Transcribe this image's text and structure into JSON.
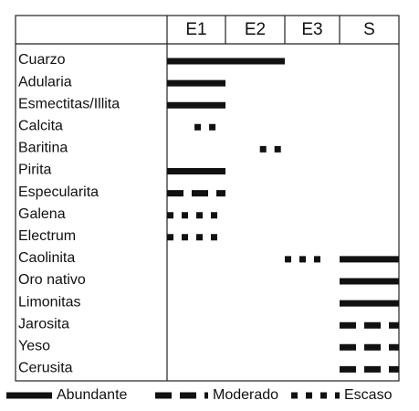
{
  "columns": [
    "E1",
    "E2",
    "E3",
    "S"
  ],
  "legend": [
    {
      "label": "Abundante"
    },
    {
      "label": "Moderado"
    },
    {
      "label": "Escaso"
    }
  ],
  "rows": [
    {
      "label": "Cuarzo",
      "bars": [
        {
          "start": 0,
          "end": 2,
          "level": 0
        }
      ]
    },
    {
      "label": "Adularia",
      "bars": [
        {
          "start": 0,
          "end": 1,
          "level": 0
        }
      ]
    },
    {
      "label": "Esmectitas/Illita",
      "bars": [
        {
          "start": 0,
          "end": 1,
          "level": 0
        }
      ]
    },
    {
      "label": "Calcita",
      "bars": [
        {
          "start": 0.47,
          "end": 0.9,
          "level": 2
        }
      ]
    },
    {
      "label": "Baritina",
      "bars": [
        {
          "start": 1.58,
          "end": 2,
          "level": 2
        }
      ]
    },
    {
      "label": "Pirita",
      "bars": [
        {
          "start": 0,
          "end": 1,
          "level": 0
        }
      ]
    },
    {
      "label": "Especularita",
      "bars": [
        {
          "start": 0,
          "end": 1,
          "level": 1
        }
      ]
    },
    {
      "label": "Galena",
      "bars": [
        {
          "start": 0,
          "end": 1,
          "level": 2
        }
      ]
    },
    {
      "label": "Electrum",
      "bars": [
        {
          "start": 0,
          "end": 1,
          "level": 2
        }
      ]
    },
    {
      "label": "Caolinita",
      "bars": [
        {
          "start": 2,
          "end": 2.75,
          "level": 2
        },
        {
          "start": 3,
          "end": 4,
          "level": 0
        }
      ]
    },
    {
      "label": "Oro nativo",
      "bars": [
        {
          "start": 3,
          "end": 4,
          "level": 0
        }
      ]
    },
    {
      "label": "Limonitas",
      "bars": [
        {
          "start": 3,
          "end": 4,
          "level": 0
        }
      ]
    },
    {
      "label": "Jarosita",
      "bars": [
        {
          "start": 3,
          "end": 4,
          "level": 1
        }
      ]
    },
    {
      "label": "Yeso",
      "bars": [
        {
          "start": 3,
          "end": 4,
          "level": 1
        }
      ]
    },
    {
      "label": "Cerusita",
      "bars": [
        {
          "start": 3,
          "end": 4,
          "level": 1
        }
      ]
    }
  ]
}
